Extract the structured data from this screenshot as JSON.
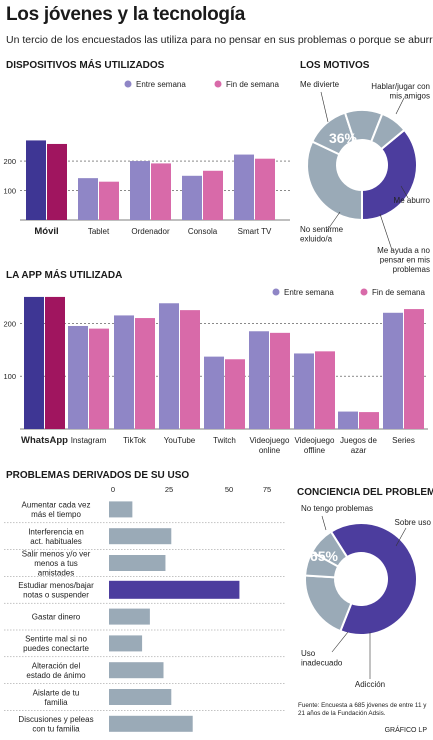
{
  "title": "Los jóvenes y la tecnología",
  "subtitle": "Un tercio de los encuestados las utiliza para no pensar en sus problemas o porque se aburre",
  "colors": {
    "purple_dark": "#3e3694",
    "magenta_dark": "#a0155f",
    "purple": "#8f86c6",
    "pink": "#d86aa9",
    "grey": "#9aaab7",
    "highlight": "#4c3d9e",
    "grid": "#444444"
  },
  "source_note": "Fuente: Encuesta a 685 jóvenes de entre 11 y 21 años de la Fundación Adsis.",
  "credit": "GRÁFICO LP",
  "chart_data": [
    {
      "id": "dispositivos",
      "type": "bar",
      "title": "DISPOSITIVOS MÁS UTILIZADOS",
      "categories": [
        "Móvil",
        "Tablet",
        "Ordenador",
        "Consola",
        "Smart TV"
      ],
      "series": [
        {
          "name": "Entre semana",
          "values": [
            270,
            142,
            200,
            150,
            222
          ]
        },
        {
          "name": "Fin de semana",
          "values": [
            258,
            130,
            192,
            167,
            208
          ]
        }
      ],
      "yticks": [
        100,
        200
      ],
      "ylim": [
        0,
        285
      ],
      "grid": true,
      "legend": "top-right"
    },
    {
      "id": "motivos",
      "type": "pie",
      "title": "LOS MOTIVOS",
      "highlight_label": "36%",
      "slices": [
        {
          "label": "Me divierte",
          "value": 36
        },
        {
          "label": "Hablar/jugar con mis amigos",
          "value": 32
        },
        {
          "label": "Me aburro",
          "value": 13
        },
        {
          "label": "Me ayuda a no pensar en mis problemas",
          "value": 11
        },
        {
          "label": "No sentirme exluido/a",
          "value": 8
        }
      ]
    },
    {
      "id": "apps",
      "type": "bar",
      "title": "LA APP MÁS UTILIZADA",
      "categories": [
        "WhatsApp",
        "Instagram",
        "TikTok",
        "YouTube",
        "Twitch",
        "Videojuego online",
        "Videojuego offline",
        "Juegos de azar",
        "Series"
      ],
      "series": [
        {
          "name": "Entre semana",
          "values": [
            250,
            195,
            215,
            238,
            137,
            185,
            143,
            33,
            220
          ]
        },
        {
          "name": "Fin de semana",
          "values": [
            250,
            190,
            210,
            225,
            132,
            182,
            147,
            32,
            227
          ]
        }
      ],
      "yticks": [
        100,
        200
      ],
      "ylim": [
        0,
        265
      ],
      "grid": true,
      "legend": "top-right"
    },
    {
      "id": "problemas",
      "type": "bar",
      "orientation": "horizontal",
      "title": "PROBLEMAS DERIVADOS DE SU USO",
      "categories": [
        "Aumentar cada vez más el tiempo",
        "Interferencia en act. habituales",
        "Salir menos y/o ver menos a tus amistades",
        "Estudiar menos/bajar notas o suspender",
        "Gastar dinero",
        "Sentirte mal si no puedes conectarte",
        "Alteración del estado de ánimo",
        "Aislarte de tu familia",
        "Discusiones y peleas con tu familia"
      ],
      "values": [
        12,
        32,
        29,
        67,
        21,
        17,
        28,
        32,
        43
      ],
      "highlight_index": 3,
      "xticks": [
        0,
        25,
        50,
        75
      ],
      "xlim": [
        0,
        75
      ],
      "grid": false
    },
    {
      "id": "conciencia",
      "type": "pie",
      "title": "CONCIENCIA DEL PROBLEMA",
      "highlight_label": "65%",
      "slices": [
        {
          "label": "No tengo problemas",
          "value": 65
        },
        {
          "label": "Sobre uso",
          "value": 20
        },
        {
          "label": "Adicción",
          "value": 7
        },
        {
          "label": "Uso inadecuado",
          "value": 8
        }
      ]
    }
  ]
}
